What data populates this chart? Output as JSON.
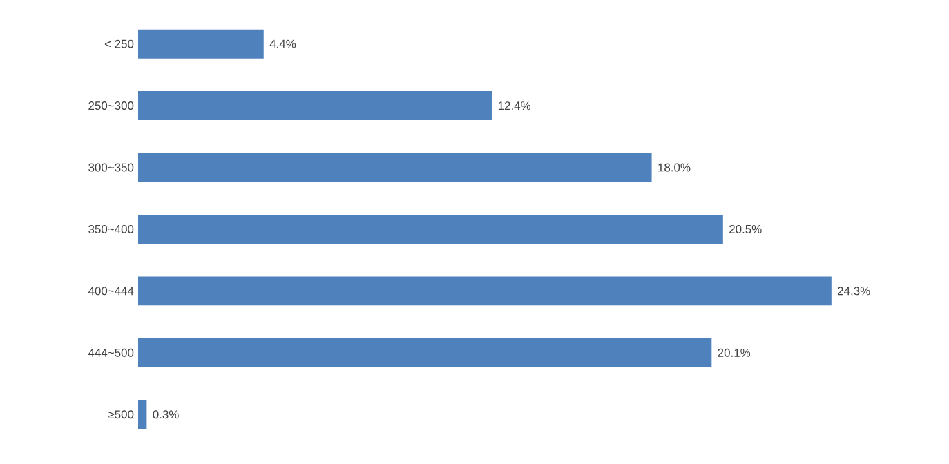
{
  "chart_data": {
    "type": "bar",
    "orientation": "horizontal",
    "categories": [
      "< 250",
      "250~300",
      "300~350",
      "350~400",
      "400~444",
      "444~500",
      "≥500"
    ],
    "values": [
      4.4,
      12.4,
      18.0,
      20.5,
      24.3,
      20.1,
      0.3
    ],
    "value_labels": [
      "4.4%",
      "12.4%",
      "18.0%",
      "20.5%",
      "24.3%",
      "20.1%",
      "0.3%"
    ],
    "color": "#4f81bd"
  }
}
